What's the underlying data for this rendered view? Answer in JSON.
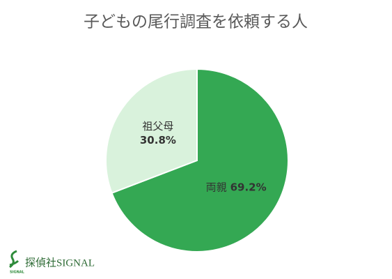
{
  "chart_data": {
    "type": "pie",
    "title": "子どもの尾行調査を依頼する人",
    "categories": [
      "両親",
      "祖父母"
    ],
    "values": [
      69.2,
      30.8
    ],
    "value_labels": [
      "69.2%",
      "30.8%"
    ],
    "colors": [
      "#34a853",
      "#d9f2dc"
    ]
  },
  "logo": "探偵社SIGNAL"
}
